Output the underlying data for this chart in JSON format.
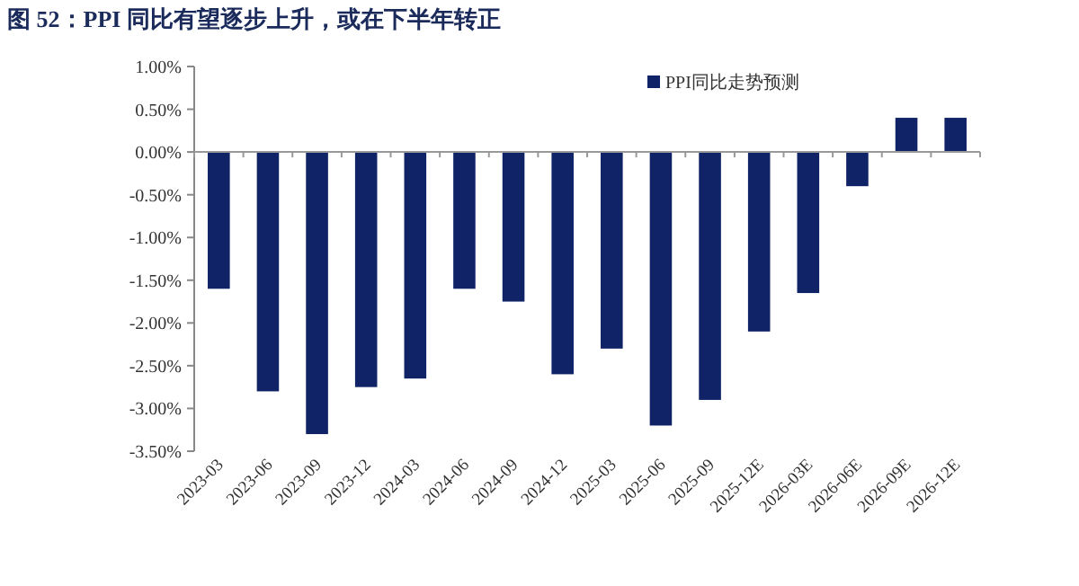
{
  "chart_data": {
    "type": "bar",
    "title": "图 52：PPI 同比有望逐步上升，或在下半年转正",
    "categories": [
      "2023-03",
      "2023-06",
      "2023-09",
      "2023-12",
      "2024-03",
      "2024-06",
      "2024-09",
      "2024-12",
      "2025-03",
      "2025-06",
      "2025-09",
      "2025-12E",
      "2026-03E",
      "2026-06E",
      "2026-09E",
      "2026-12E"
    ],
    "series": [
      {
        "name": "PPI同比走势预测",
        "color": "#0f2366",
        "values": [
          -1.6,
          -2.8,
          -3.3,
          -2.75,
          -2.65,
          -1.6,
          -1.75,
          -2.6,
          -2.3,
          -3.2,
          -2.9,
          -2.1,
          -1.65,
          -0.4,
          0.4,
          0.4
        ]
      }
    ],
    "ylim": [
      -3.5,
      1
    ],
    "yticks": [
      {
        "value": 1,
        "label": "1.00%"
      },
      {
        "value": 0.5,
        "label": "0.50%"
      },
      {
        "value": 0,
        "label": "0.00%"
      },
      {
        "value": -0.5,
        "label": "-0.50%"
      },
      {
        "value": -1,
        "label": "-1.00%"
      },
      {
        "value": -1.5,
        "label": "-1.50%"
      },
      {
        "value": -2,
        "label": "-2.00%"
      },
      {
        "value": -2.5,
        "label": "-2.50%"
      },
      {
        "value": -3,
        "label": "-3.00%"
      },
      {
        "value": -3.5,
        "label": "-3.50%"
      }
    ],
    "legend": "top right"
  }
}
